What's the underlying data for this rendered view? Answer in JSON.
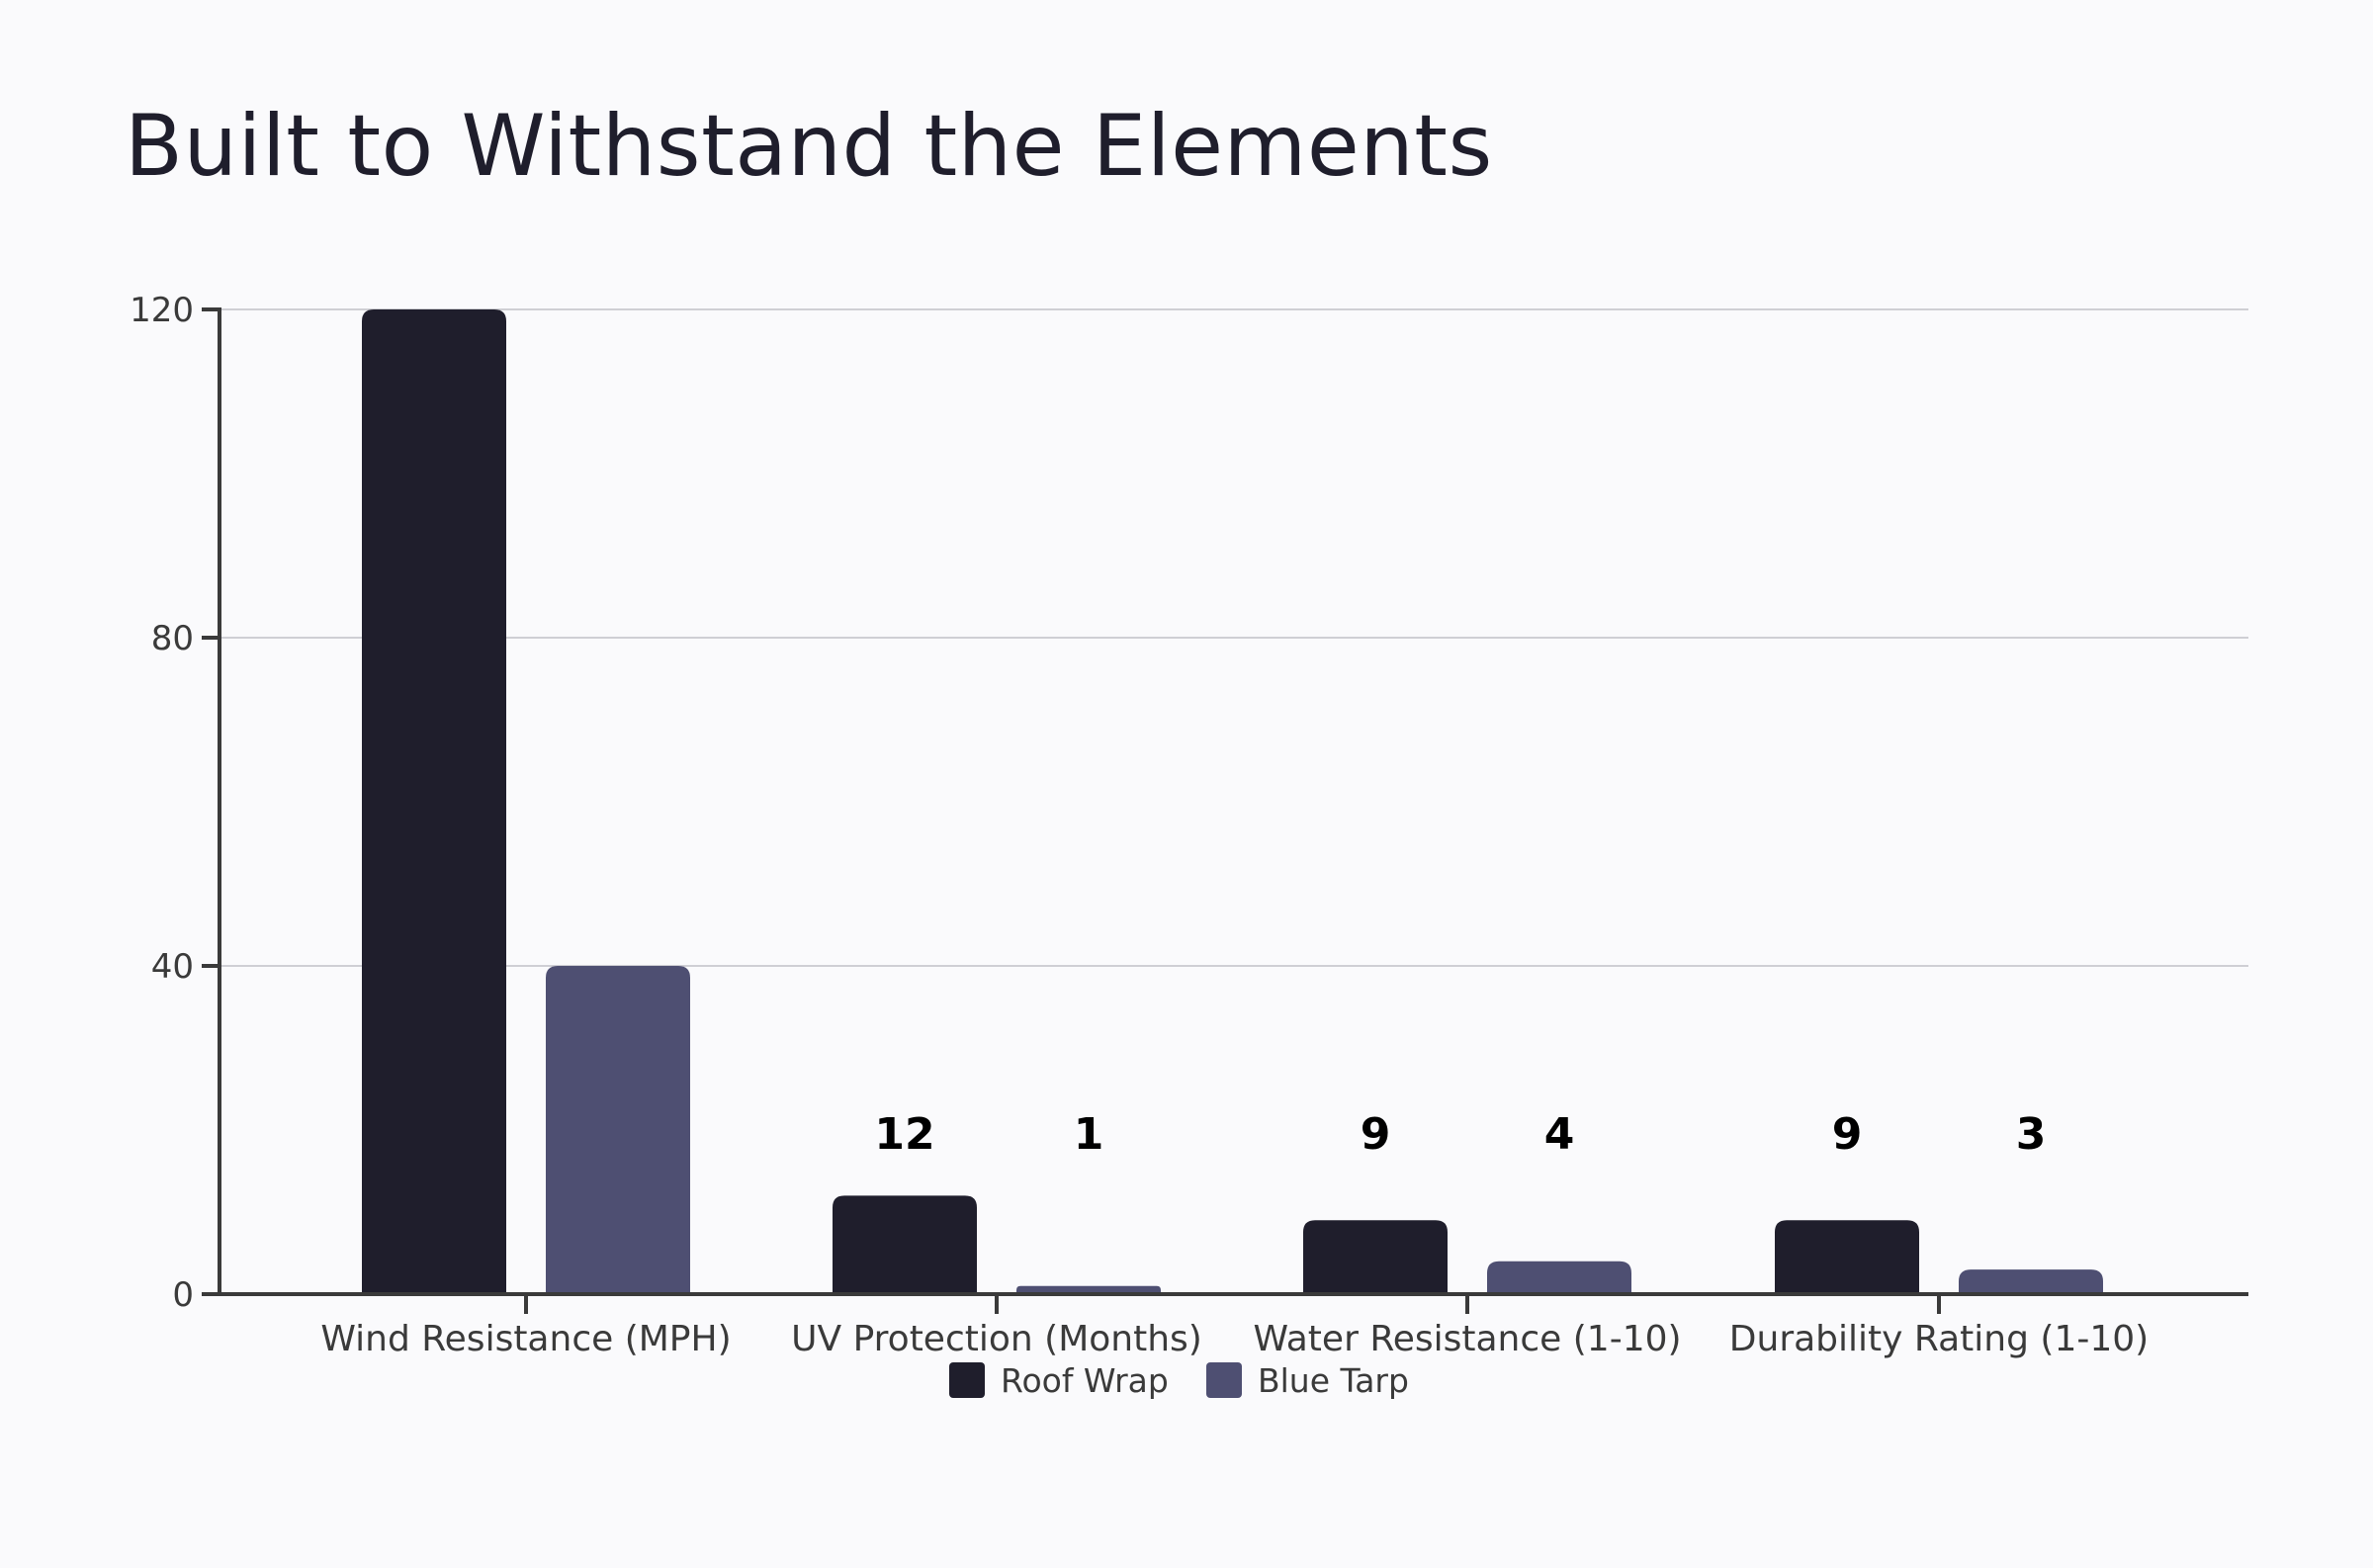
{
  "chart_data": {
    "type": "bar",
    "title": "Built to Withstand the Elements",
    "categories": [
      "Wind Resistance (MPH)",
      "UV Protection (Months)",
      "Water Resistance (1-10)",
      "Durability Rating (1-10)"
    ],
    "series": [
      {
        "name": "Roof Wrap",
        "values": [
          120,
          12,
          9,
          9
        ],
        "color": "#1f1e2c"
      },
      {
        "name": "Blue Tarp",
        "values": [
          40,
          1,
          4,
          3
        ],
        "color": "#4e4f72"
      }
    ],
    "data_labels": [
      [
        null,
        "12",
        "9",
        "9"
      ],
      [
        null,
        "1",
        "4",
        "3"
      ]
    ],
    "yticks": [
      0,
      40,
      80,
      120
    ],
    "ylim": [
      0,
      120
    ],
    "xlabel": "",
    "ylabel": "",
    "grid": true,
    "legend_position": "bottom"
  }
}
